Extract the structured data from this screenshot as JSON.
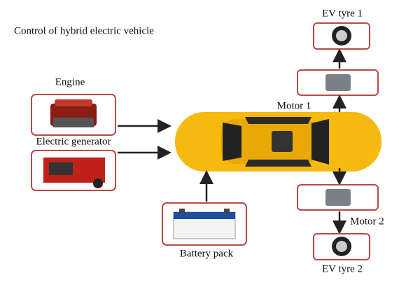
{
  "title": "Control of hybrid electric vehicle",
  "nodes": [
    {
      "label": "Engine"
    },
    {
      "label": "Electric generator"
    },
    {
      "label": "Battery pack"
    },
    {
      "label": "Motor 1"
    },
    {
      "label": "Motor 2"
    },
    {
      "label": "EV tyre 1"
    },
    {
      "label": "EV tyre 2"
    }
  ]
}
